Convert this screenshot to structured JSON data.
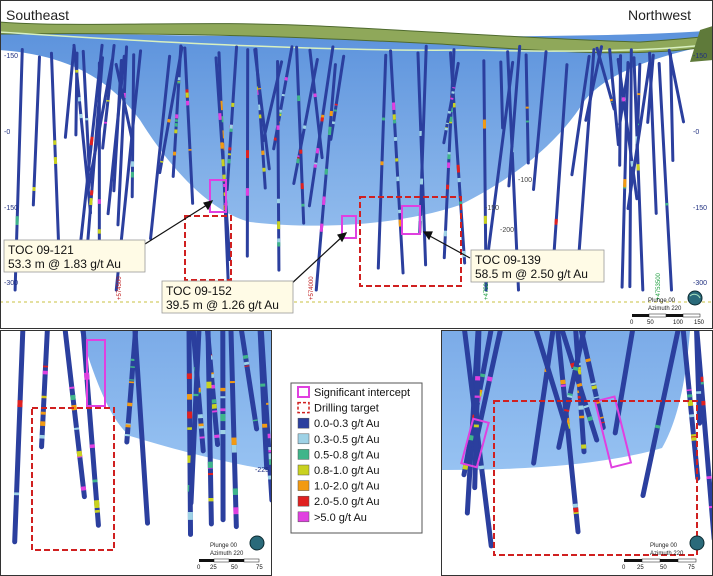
{
  "directions": {
    "left": "Southeast",
    "right": "Northwest"
  },
  "depth_ticks_top": [
    "-150",
    "-0",
    "-150",
    "-300"
  ],
  "depth_ticks_right": [
    "-150",
    "-0",
    "-150",
    "-300"
  ],
  "misc_ticks": [
    "-100",
    "-150",
    "-200"
  ],
  "coord_labels": [
    "+574500",
    "+574000",
    "+4752250",
    "+4753500"
  ],
  "callouts": [
    {
      "hole": "TOC 09-121",
      "result": "53.3 m @ 1.83 g/t Au"
    },
    {
      "hole": "TOC 09-152",
      "result": "39.5 m @ 1.26 g/t Au"
    },
    {
      "hole": "TOC 09-139",
      "result": "58.5 m @ 2.50 g/t Au"
    }
  ],
  "orientation": {
    "plunge": "Plunge 00",
    "azimuth": "Azimuth 220"
  },
  "scale_top": [
    "0",
    "50",
    "100",
    "150"
  ],
  "scale_inset": [
    "0",
    "25",
    "50",
    "75"
  ],
  "inset_tick": "-225",
  "legend": {
    "items": [
      {
        "label": "Significant intercept",
        "kind": "outline",
        "color": "#e040e0"
      },
      {
        "label": "Drilling target",
        "kind": "dashed",
        "color": "#d02020"
      },
      {
        "label": "0.0-0.3 g/t Au",
        "kind": "fill",
        "color": "#2b3f9e"
      },
      {
        "label": "0.3-0.5 g/t Au",
        "kind": "fill",
        "color": "#9ed2e6"
      },
      {
        "label": "0.5-0.8 g/t Au",
        "kind": "fill",
        "color": "#3fb58a"
      },
      {
        "label": "0.8-1.0 g/t Au",
        "kind": "fill",
        "color": "#c9d21f"
      },
      {
        "label": "1.0-2.0 g/t Au",
        "kind": "fill",
        "color": "#f29a12"
      },
      {
        "label": "2.0-5.0 g/t Au",
        "kind": "fill",
        "color": "#e02020"
      },
      {
        "label": ">5.0 g/t Au",
        "kind": "fill",
        "color": "#e040e0"
      }
    ]
  }
}
